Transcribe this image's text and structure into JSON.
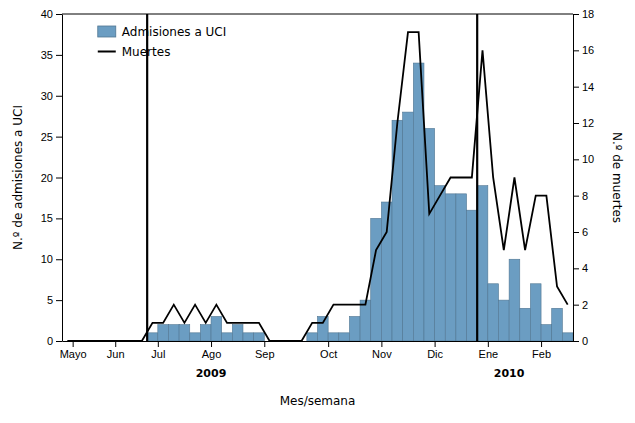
{
  "chart_data": {
    "type": "bar",
    "x_label": "Mes/semana",
    "y_label": "N.º de admisiones a UCI",
    "y2_label": "N.º de muertes",
    "x": [
      1,
      2,
      3,
      4,
      5,
      6,
      7,
      8,
      9,
      10,
      11,
      12,
      13,
      14,
      15,
      16,
      17,
      18,
      19,
      20,
      21,
      22,
      23,
      24,
      25,
      26,
      27,
      28,
      29,
      30,
      31,
      32,
      33,
      34,
      35,
      36,
      37,
      38,
      39,
      40,
      41,
      42,
      43,
      44,
      45,
      46,
      47,
      48
    ],
    "xlim": [
      0.5,
      48.5
    ],
    "xticks": [
      {
        "value": 1.5,
        "label": "Mayo"
      },
      {
        "value": 5.5,
        "label": "Jun"
      },
      {
        "value": 9.5,
        "label": "Jul"
      },
      {
        "value": 14.5,
        "label": "Ago"
      },
      {
        "value": 19.5,
        "label": "Sep"
      },
      {
        "value": 25.5,
        "label": "Oct"
      },
      {
        "value": 30.5,
        "label": "Nov"
      },
      {
        "value": 35.5,
        "label": "Dic"
      },
      {
        "value": 40.5,
        "label": "Ene"
      },
      {
        "value": 45.5,
        "label": "Feb"
      }
    ],
    "ylim": [
      0,
      40
    ],
    "yticks": [
      0,
      5,
      10,
      15,
      20,
      25,
      30,
      35,
      40
    ],
    "y2lim": [
      0,
      18
    ],
    "y2ticks": [
      0,
      2,
      4,
      6,
      8,
      10,
      12,
      14,
      16,
      18
    ],
    "series": [
      {
        "name": "Admisiones a UCI",
        "type": "bar",
        "color": "#6B9DC2",
        "values": [
          0,
          0,
          0,
          0,
          0,
          0,
          0,
          0,
          1,
          2,
          2,
          2,
          1,
          2,
          3,
          1,
          2,
          1,
          1,
          0,
          0,
          0,
          0,
          1,
          3,
          1,
          1,
          3,
          5,
          15,
          17,
          27,
          28,
          34,
          26,
          19,
          18,
          18,
          16,
          19,
          7,
          5,
          10,
          4,
          7,
          2,
          4,
          1
        ]
      },
      {
        "name": "Muertes",
        "type": "line",
        "color": "#000000",
        "axis": "y2",
        "values": [
          0,
          0,
          0,
          0,
          0,
          0,
          0,
          0,
          1,
          1,
          2,
          1,
          2,
          1,
          2,
          1,
          1,
          1,
          1,
          0,
          0,
          0,
          0,
          1,
          1,
          2,
          2,
          2,
          2,
          5,
          6,
          12,
          17,
          17,
          7,
          8,
          9,
          9,
          9,
          16,
          9,
          5,
          9,
          5,
          8,
          8,
          3,
          2
        ]
      }
    ],
    "vlines": [
      8.5,
      39.5
    ],
    "annotations": [
      {
        "text": "2009",
        "x": 14.5
      },
      {
        "text": "2010",
        "x": 42.5
      }
    ],
    "legend": "upper left",
    "grid": false
  }
}
